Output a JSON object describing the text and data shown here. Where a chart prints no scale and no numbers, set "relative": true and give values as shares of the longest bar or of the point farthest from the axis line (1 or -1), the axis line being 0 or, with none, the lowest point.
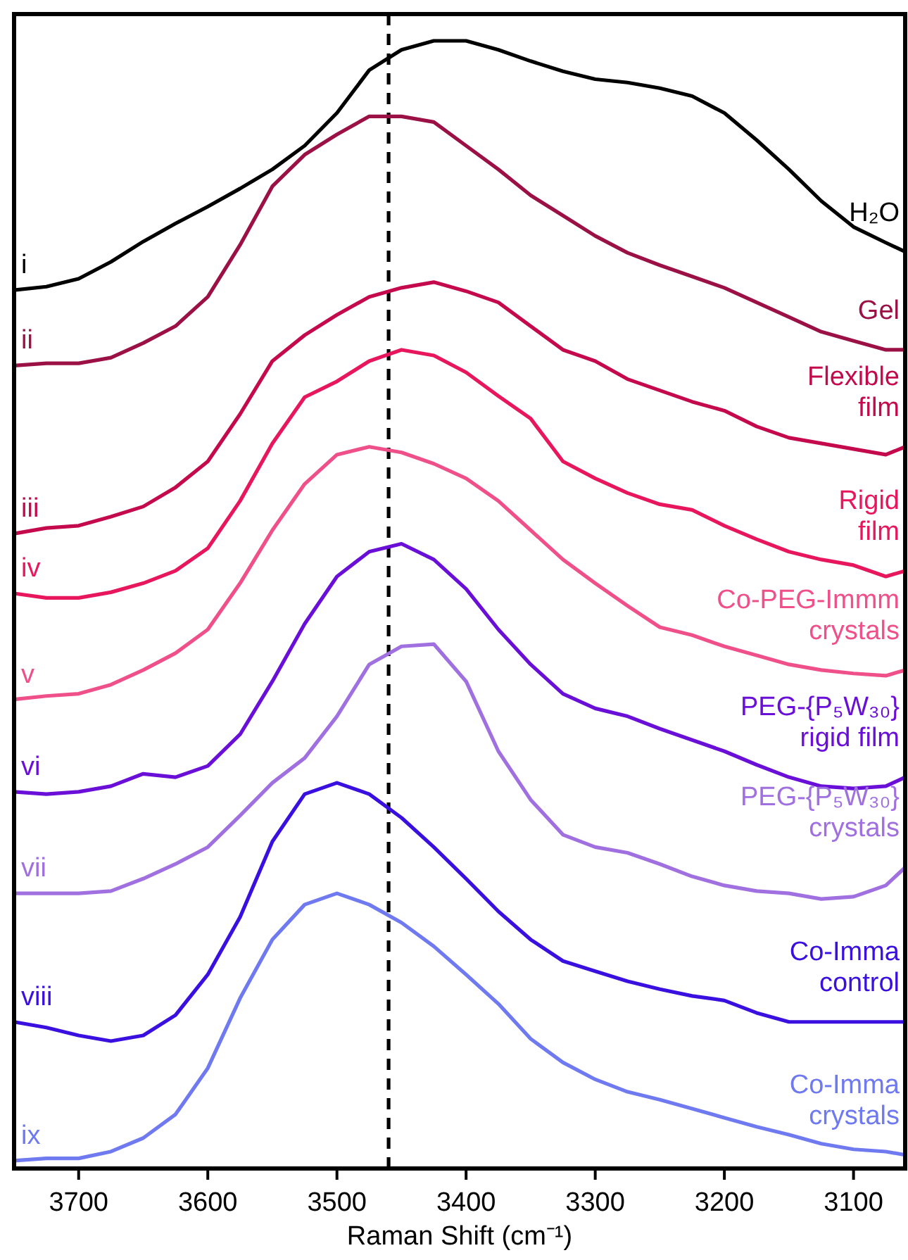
{
  "chart_data": {
    "type": "line",
    "relative": true,
    "xlabel": "Raman Shift (cm⁻¹)",
    "xlim": [
      3750,
      3060
    ],
    "xticks": [
      3700,
      3600,
      3500,
      3400,
      3300,
      3200,
      3100
    ],
    "legend": false,
    "grid": false,
    "marker": "none",
    "line_style": "solid",
    "x": [
      3750,
      3725,
      3700,
      3675,
      3650,
      3625,
      3600,
      3575,
      3550,
      3525,
      3500,
      3475,
      3450,
      3425,
      3400,
      3375,
      3350,
      3325,
      3300,
      3275,
      3250,
      3225,
      3200,
      3175,
      3150,
      3125,
      3100,
      3075,
      3060
    ],
    "series": [
      {
        "name": "H₂O",
        "color": "#000000",
        "values": [
          0.779,
          0.782,
          0.789,
          0.804,
          0.822,
          0.838,
          0.853,
          0.869,
          0.886,
          0.907,
          0.936,
          0.974,
          0.992,
          1.0,
          1.0,
          0.992,
          0.982,
          0.973,
          0.966,
          0.963,
          0.958,
          0.951,
          0.936,
          0.912,
          0.886,
          0.858,
          0.835,
          0.821,
          0.813
        ]
      },
      {
        "name": "Gel",
        "color": "#9b1045",
        "values": [
          0.712,
          0.714,
          0.714,
          0.719,
          0.732,
          0.747,
          0.773,
          0.819,
          0.871,
          0.899,
          0.917,
          0.933,
          0.933,
          0.928,
          0.907,
          0.886,
          0.863,
          0.845,
          0.827,
          0.812,
          0.801,
          0.791,
          0.781,
          0.768,
          0.755,
          0.742,
          0.734,
          0.726,
          0.726
        ]
      },
      {
        "name": "Flexible film",
        "color": "#c40a4d",
        "values": [
          0.563,
          0.568,
          0.57,
          0.578,
          0.587,
          0.604,
          0.627,
          0.669,
          0.716,
          0.739,
          0.757,
          0.773,
          0.781,
          0.786,
          0.778,
          0.768,
          0.747,
          0.726,
          0.716,
          0.7,
          0.69,
          0.68,
          0.672,
          0.658,
          0.648,
          0.643,
          0.638,
          0.633,
          0.64
        ]
      },
      {
        "name": "Rigid film",
        "color": "#e8175d",
        "values": [
          0.51,
          0.506,
          0.506,
          0.511,
          0.519,
          0.53,
          0.55,
          0.592,
          0.643,
          0.684,
          0.698,
          0.716,
          0.726,
          0.721,
          0.706,
          0.685,
          0.665,
          0.627,
          0.612,
          0.599,
          0.589,
          0.584,
          0.57,
          0.558,
          0.547,
          0.54,
          0.535,
          0.525,
          0.53
        ]
      },
      {
        "name": "Co-PEG-Immm crystals",
        "color": "#f0508a",
        "values": [
          0.416,
          0.419,
          0.421,
          0.429,
          0.442,
          0.457,
          0.478,
          0.519,
          0.566,
          0.607,
          0.633,
          0.64,
          0.635,
          0.625,
          0.612,
          0.592,
          0.566,
          0.54,
          0.519,
          0.499,
          0.48,
          0.473,
          0.463,
          0.455,
          0.447,
          0.442,
          0.439,
          0.437,
          0.442
        ]
      },
      {
        "name": "PEG-{P₅W₃₀} rigid film",
        "color": "#6a0fd8",
        "values": [
          0.334,
          0.332,
          0.334,
          0.339,
          0.35,
          0.347,
          0.357,
          0.385,
          0.432,
          0.483,
          0.525,
          0.547,
          0.554,
          0.54,
          0.514,
          0.478,
          0.447,
          0.421,
          0.408,
          0.401,
          0.39,
          0.38,
          0.37,
          0.358,
          0.347,
          0.339,
          0.337,
          0.339,
          0.347
        ]
      },
      {
        "name": "PEG-{P₅W₃₀} crystals",
        "color": "#a070e0",
        "values": [
          0.244,
          0.244,
          0.244,
          0.246,
          0.257,
          0.27,
          0.285,
          0.313,
          0.342,
          0.364,
          0.401,
          0.447,
          0.463,
          0.465,
          0.432,
          0.37,
          0.327,
          0.296,
          0.285,
          0.28,
          0.27,
          0.259,
          0.251,
          0.246,
          0.244,
          0.239,
          0.241,
          0.251,
          0.267
        ]
      },
      {
        "name": "Co-Imma control",
        "color": "#3a10e0",
        "values": [
          0.13,
          0.125,
          0.118,
          0.113,
          0.118,
          0.136,
          0.172,
          0.223,
          0.29,
          0.332,
          0.342,
          0.332,
          0.311,
          0.285,
          0.257,
          0.228,
          0.203,
          0.184,
          0.175,
          0.166,
          0.159,
          0.153,
          0.149,
          0.138,
          0.13,
          0.13,
          0.13,
          0.13,
          0.13
        ]
      },
      {
        "name": "Co-Imma crystals",
        "color": "#6f79f0",
        "values": [
          0.007,
          0.009,
          0.009,
          0.015,
          0.027,
          0.048,
          0.089,
          0.151,
          0.203,
          0.234,
          0.244,
          0.234,
          0.218,
          0.197,
          0.172,
          0.146,
          0.115,
          0.094,
          0.079,
          0.068,
          0.061,
          0.053,
          0.045,
          0.037,
          0.03,
          0.022,
          0.017,
          0.015,
          0.012
        ]
      }
    ],
    "ref_lines": [
      {
        "axis": "x",
        "value": 3460,
        "color": "#000000",
        "line_style": "dashed"
      }
    ],
    "annotations": [
      "i",
      "ii",
      "iii",
      "iv",
      "v",
      "vi",
      "vii",
      "viii",
      "ix"
    ]
  }
}
